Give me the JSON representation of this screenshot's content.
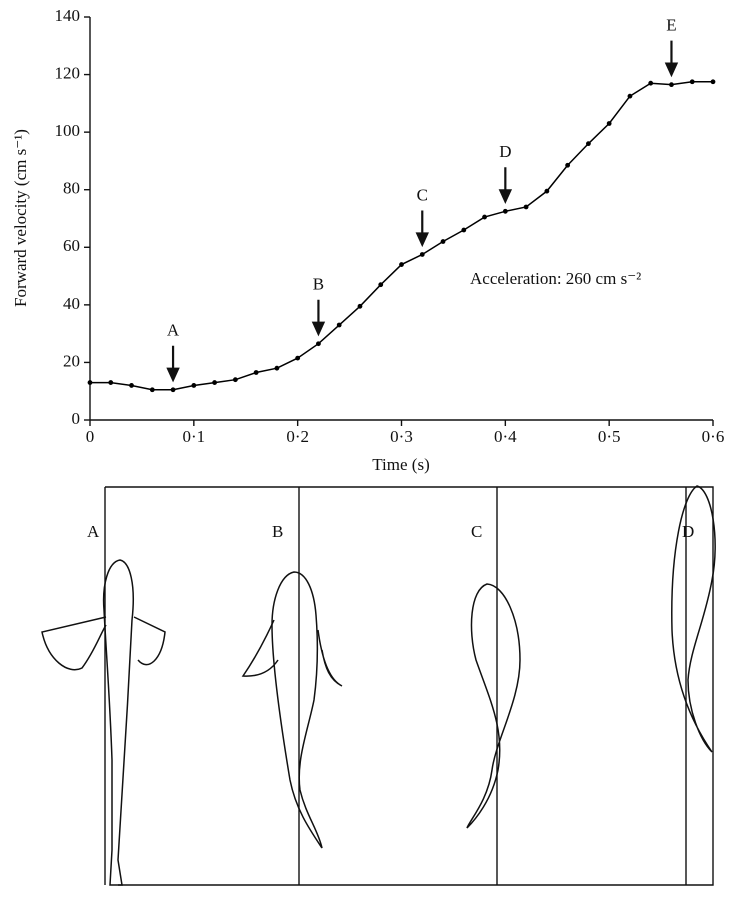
{
  "chart_data": {
    "type": "line",
    "ylabel": "Forward velocity (cm s⁻¹)",
    "xlabel": "Time (s)",
    "x": [
      0,
      0.02,
      0.04,
      0.06,
      0.08,
      0.1,
      0.12,
      0.14,
      0.16,
      0.18,
      0.2,
      0.22,
      0.24,
      0.26,
      0.28,
      0.3,
      0.32,
      0.34,
      0.36,
      0.38,
      0.4,
      0.42,
      0.44,
      0.46,
      0.48,
      0.5,
      0.52,
      0.54,
      0.56,
      0.58,
      0.6
    ],
    "values": [
      13,
      13,
      12,
      10.5,
      10.5,
      12,
      13,
      14,
      16.5,
      18,
      21.5,
      26.5,
      33,
      39.5,
      47,
      54,
      57.5,
      62,
      66,
      70.5,
      72.5,
      74,
      79.5,
      88.5,
      96,
      103,
      112.5,
      117,
      116.5,
      117.5,
      117.5
    ],
    "color": "#000000",
    "xlim": [
      0,
      0.6
    ],
    "xticks": [
      0,
      {
        "value": 0.1,
        "label": "0·1"
      },
      {
        "value": 0.2,
        "label": "0·2"
      },
      {
        "value": 0.3,
        "label": "0·3"
      },
      {
        "value": 0.4,
        "label": "0·4"
      },
      {
        "value": 0.5,
        "label": "0·5"
      },
      {
        "value": 0.6,
        "label": "0·6"
      }
    ],
    "ylim": [
      0,
      140
    ],
    "yticks": [
      0,
      20,
      40,
      60,
      80,
      100,
      120,
      140
    ],
    "grid": false,
    "annotations": [
      {
        "label": "A",
        "x": 0.08
      },
      {
        "label": "B",
        "x": 0.22
      },
      {
        "label": "C",
        "x": 0.32
      },
      {
        "label": "D",
        "x": 0.4
      },
      {
        "label": "E",
        "x": 0.56
      }
    ],
    "note": "Acceleration: 260 cm s⁻²"
  },
  "diagram": {
    "panels": [
      "A",
      "B",
      "C",
      "D"
    ]
  }
}
